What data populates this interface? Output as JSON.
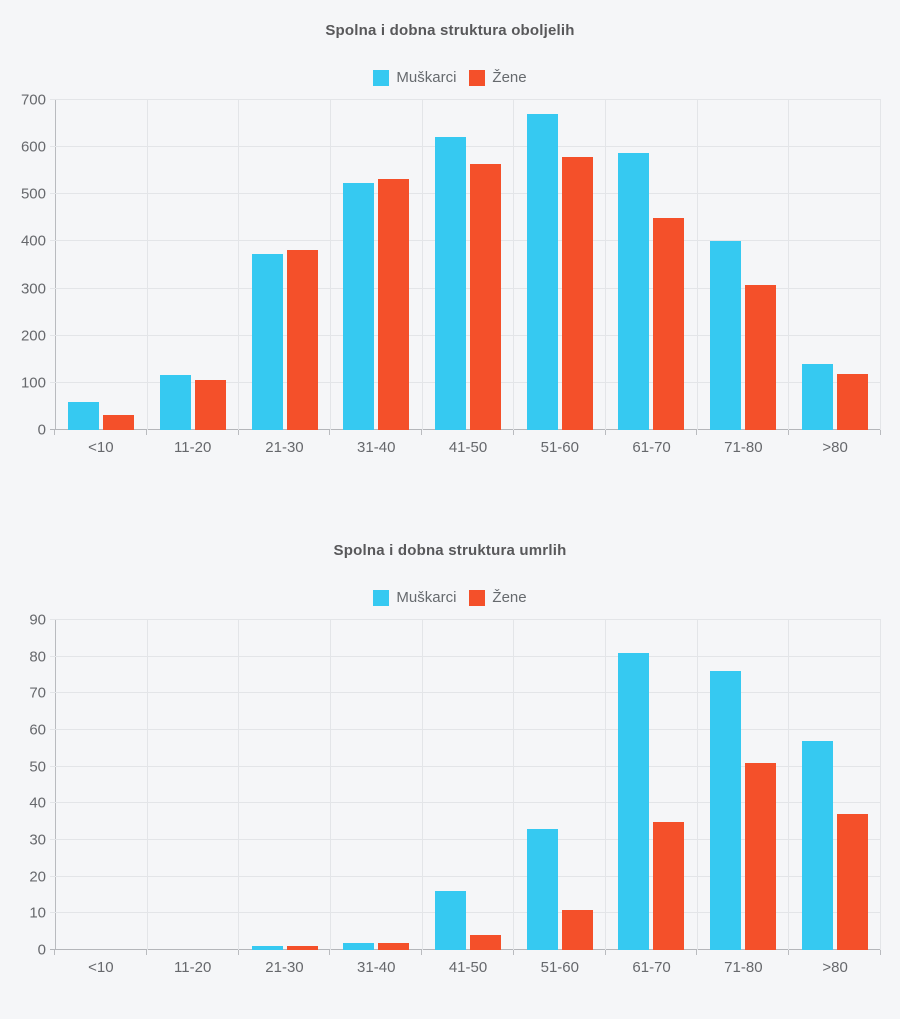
{
  "page": {
    "background": "#f5f6f8"
  },
  "colors": {
    "male": "#36c9f1",
    "female": "#f4502a",
    "grid": "#e3e5e8",
    "axis": "#b9bbbf",
    "tick_text": "#66686c",
    "title_text": "#58585a"
  },
  "chart_data": [
    {
      "type": "bar",
      "title": "Spolna i dobna struktura oboljelih",
      "categories": [
        "<10",
        "11-20",
        "21-30",
        "31-40",
        "41-50",
        "51-60",
        "61-70",
        "71-80",
        ">80"
      ],
      "series": [
        {
          "name": "Muškarci",
          "color": "#36c9f1",
          "values": [
            60,
            117,
            373,
            524,
            621,
            670,
            588,
            401,
            140
          ]
        },
        {
          "name": "Žene",
          "color": "#f4502a",
          "values": [
            31,
            107,
            381,
            533,
            564,
            580,
            450,
            308,
            119
          ]
        }
      ],
      "xlabel": "",
      "ylabel": "",
      "ylim": [
        0,
        700
      ],
      "ystep": 100,
      "grid": true,
      "legend_position": "top"
    },
    {
      "type": "bar",
      "title": "Spolna i dobna struktura umrlih",
      "categories": [
        "<10",
        "11-20",
        "21-30",
        "31-40",
        "41-50",
        "51-60",
        "61-70",
        "71-80",
        ">80"
      ],
      "series": [
        {
          "name": "Muškarci",
          "color": "#36c9f1",
          "values": [
            0,
            0,
            1,
            2,
            16,
            33,
            81,
            76,
            57
          ]
        },
        {
          "name": "Žene",
          "color": "#f4502a",
          "values": [
            0,
            0,
            1,
            2,
            4,
            11,
            35,
            51,
            37
          ]
        }
      ],
      "xlabel": "",
      "ylabel": "",
      "ylim": [
        0,
        90
      ],
      "ystep": 10,
      "grid": true,
      "legend_position": "top"
    }
  ]
}
